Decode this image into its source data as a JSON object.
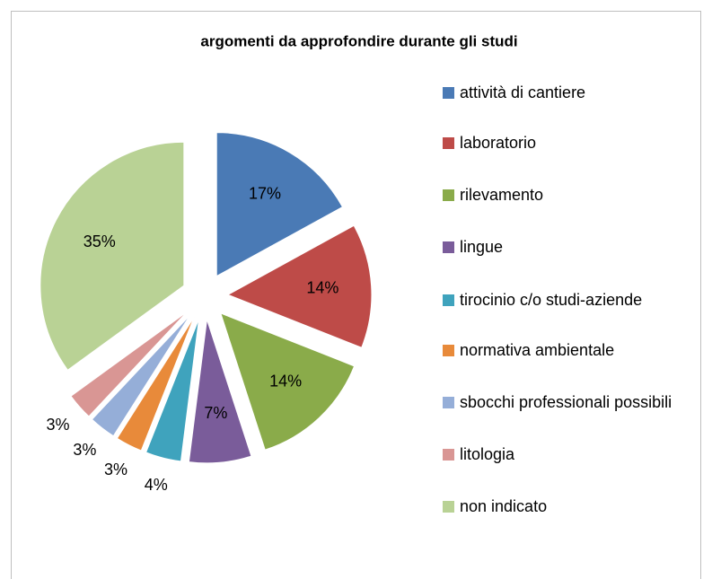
{
  "chart_data": {
    "type": "pie",
    "title": "argomenti da approfondire durante gli studi",
    "categories": [
      "attività di cantiere",
      "laboratorio",
      "rilevamento",
      "lingue",
      "tirocinio c/o studi-aziende",
      "normativa ambientale",
      "sbocchi professionali possibili",
      "litologia",
      "non indicato"
    ],
    "values": [
      17,
      14,
      14,
      7,
      4,
      3,
      3,
      3,
      35
    ],
    "value_labels": [
      "17%",
      "14%",
      "14%",
      "7%",
      "4%",
      "3%",
      "3%",
      "3%",
      "35%"
    ],
    "colors": [
      "#4a7ab5",
      "#be4b48",
      "#8aab4a",
      "#7a5c9a",
      "#3fa3bd",
      "#e88a3a",
      "#95aed8",
      "#d99694",
      "#b9d295"
    ],
    "legend": "right"
  }
}
